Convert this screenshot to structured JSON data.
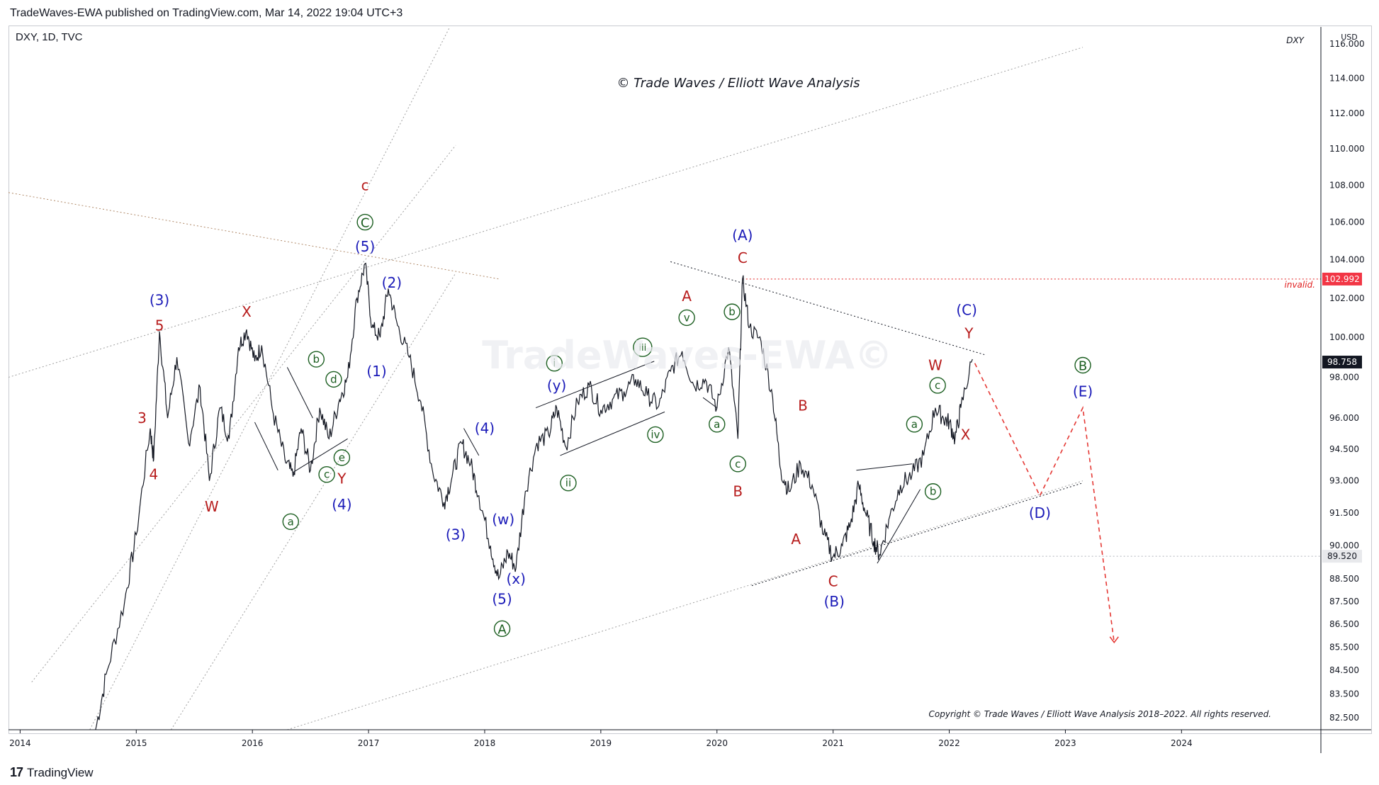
{
  "header": {
    "published_line": "TradeWaves-EWA published on TradingView.com, Mar 14, 2022 19:04 UTC+3",
    "symbol_line": "DXY, 1D, TVC"
  },
  "footer": {
    "brand": "TradingView"
  },
  "chart_data": {
    "type": "line",
    "title": "© Trade Waves / Elliott Wave Analysis",
    "watermark": "TradeWaves-EWA©",
    "symbol_tag": "DXY",
    "currency": "USD",
    "copyright": "Copyright © Trade Waves / Elliott Wave Analysis 2018–2022. All rights reserved.",
    "y_scale": "log",
    "ylim": [
      82.0,
      117.0
    ],
    "xlim": [
      2013.9,
      2025.2
    ],
    "x_ticks": [
      "2014",
      "2015",
      "2016",
      "2017",
      "2018",
      "2019",
      "2020",
      "2021",
      "2022",
      "2023",
      "2024"
    ],
    "y_ticks": [
      "82.500",
      "83.500",
      "84.500",
      "85.500",
      "86.500",
      "87.500",
      "88.500",
      "90.000",
      "91.500",
      "93.000",
      "94.500",
      "96.000",
      "98.000",
      "100.000",
      "102.000",
      "104.000",
      "106.000",
      "108.000",
      "110.000",
      "112.000",
      "114.000",
      "116.000"
    ],
    "price_badges": [
      {
        "label": "102.992",
        "value": 102.992,
        "bg": "#f23645",
        "fg": "#ffffff"
      },
      {
        "label": "98.758",
        "value": 98.758,
        "bg": "#131722",
        "fg": "#ffffff"
      },
      {
        "label": "89.520",
        "value": 89.52,
        "bg": "#e8e9ec",
        "fg": "#131722"
      }
    ],
    "invalidation": {
      "label": "invalid.",
      "value": 102.992,
      "color": "#e02020"
    },
    "series": [
      {
        "name": "DXY",
        "color": "#131722",
        "points": [
          [
            2014.65,
            82.0
          ],
          [
            2014.75,
            84.5
          ],
          [
            2014.9,
            87.5
          ],
          [
            2015.0,
            90.5
          ],
          [
            2015.12,
            95.5
          ],
          [
            2015.15,
            94.0
          ],
          [
            2015.2,
            100.3
          ],
          [
            2015.27,
            96.0
          ],
          [
            2015.35,
            99.0
          ],
          [
            2015.45,
            94.8
          ],
          [
            2015.55,
            97.5
          ],
          [
            2015.63,
            93.0
          ],
          [
            2015.72,
            96.5
          ],
          [
            2015.8,
            95.0
          ],
          [
            2015.88,
            99.5
          ],
          [
            2015.95,
            100.4
          ],
          [
            2016.02,
            98.8
          ],
          [
            2016.08,
            99.6
          ],
          [
            2016.18,
            96.2
          ],
          [
            2016.28,
            94.0
          ],
          [
            2016.35,
            93.2
          ],
          [
            2016.42,
            95.5
          ],
          [
            2016.5,
            93.5
          ],
          [
            2016.58,
            96.5
          ],
          [
            2016.66,
            95.0
          ],
          [
            2016.75,
            96.9
          ],
          [
            2016.82,
            98.0
          ],
          [
            2016.9,
            102.0
          ],
          [
            2016.97,
            103.8
          ],
          [
            2017.03,
            100.5
          ],
          [
            2017.1,
            100.0
          ],
          [
            2017.17,
            102.5
          ],
          [
            2017.25,
            100.6
          ],
          [
            2017.35,
            99.0
          ],
          [
            2017.45,
            96.8
          ],
          [
            2017.55,
            93.5
          ],
          [
            2017.65,
            92.0
          ],
          [
            2017.72,
            93.2
          ],
          [
            2017.8,
            94.8
          ],
          [
            2017.88,
            93.8
          ],
          [
            2017.95,
            92.3
          ],
          [
            2018.05,
            90.0
          ],
          [
            2018.12,
            88.5
          ],
          [
            2018.2,
            89.7
          ],
          [
            2018.27,
            89.0
          ],
          [
            2018.35,
            92.5
          ],
          [
            2018.45,
            94.8
          ],
          [
            2018.55,
            95.2
          ],
          [
            2018.62,
            96.5
          ],
          [
            2018.7,
            94.6
          ],
          [
            2018.8,
            96.8
          ],
          [
            2018.9,
            97.6
          ],
          [
            2019.0,
            96.4
          ],
          [
            2019.1,
            96.9
          ],
          [
            2019.2,
            97.3
          ],
          [
            2019.3,
            97.9
          ],
          [
            2019.4,
            97.1
          ],
          [
            2019.5,
            96.6
          ],
          [
            2019.6,
            98.3
          ],
          [
            2019.7,
            99.3
          ],
          [
            2019.8,
            97.6
          ],
          [
            2019.9,
            97.9
          ],
          [
            2020.0,
            96.5
          ],
          [
            2020.1,
            99.5
          ],
          [
            2020.18,
            95.0
          ],
          [
            2020.22,
            103.0
          ],
          [
            2020.28,
            100.5
          ],
          [
            2020.38,
            99.8
          ],
          [
            2020.48,
            97.0
          ],
          [
            2020.55,
            93.5
          ],
          [
            2020.62,
            92.5
          ],
          [
            2020.72,
            93.8
          ],
          [
            2020.82,
            92.8
          ],
          [
            2020.92,
            90.5
          ],
          [
            2021.0,
            89.5
          ],
          [
            2021.08,
            90.0
          ],
          [
            2021.15,
            91.0
          ],
          [
            2021.22,
            92.8
          ],
          [
            2021.28,
            91.5
          ],
          [
            2021.35,
            90.2
          ],
          [
            2021.4,
            89.6
          ],
          [
            2021.48,
            91.2
          ],
          [
            2021.58,
            92.8
          ],
          [
            2021.68,
            93.3
          ],
          [
            2021.78,
            94.2
          ],
          [
            2021.88,
            96.5
          ],
          [
            2021.95,
            96.0
          ],
          [
            2022.0,
            95.8
          ],
          [
            2022.05,
            95.0
          ],
          [
            2022.1,
            96.5
          ],
          [
            2022.2,
            98.9
          ]
        ]
      }
    ],
    "projections": [
      {
        "name": "",
        "color": "#e53935",
        "points": [
          [
            2022.22,
            98.7
          ],
          [
            2022.78,
            92.3
          ],
          [
            2023.15,
            96.5
          ],
          [
            2023.42,
            85.7
          ]
        ]
      }
    ],
    "trendlines": [
      {
        "color": "#131722",
        "style": "dotted",
        "points": [
          [
            2019.6,
            103.9
          ],
          [
            2022.32,
            99.1
          ]
        ]
      },
      {
        "color": "#131722",
        "style": "dotted",
        "points": [
          [
            2020.3,
            88.2
          ],
          [
            2023.15,
            92.9
          ]
        ]
      },
      {
        "color": "#9e9e9e",
        "style": "dotted",
        "points": [
          [
            2016.3,
            82.0
          ],
          [
            2023.15,
            93.0
          ]
        ]
      },
      {
        "color": "#9e9e9e",
        "style": "dotted",
        "points": [
          [
            2013.9,
            98.0
          ],
          [
            2023.15,
            115.8
          ]
        ]
      },
      {
        "color": "#b08968",
        "style": "dotted",
        "points": [
          [
            2013.9,
            107.6
          ],
          [
            2018.12,
            103.0
          ]
        ]
      },
      {
        "color": "#9e9e9e",
        "style": "dotted",
        "points": [
          [
            2014.6,
            82.0
          ],
          [
            2017.7,
            117.0
          ]
        ]
      },
      {
        "color": "#9e9e9e",
        "style": "dotted",
        "points": [
          [
            2014.1,
            84.0
          ],
          [
            2017.75,
            110.2
          ]
        ]
      },
      {
        "color": "#9e9e9e",
        "style": "dotted",
        "points": [
          [
            2015.3,
            82.0
          ],
          [
            2017.75,
            103.3
          ]
        ]
      },
      {
        "color": "#131722",
        "style": "solid",
        "points": [
          [
            2016.35,
            93.4
          ],
          [
            2016.82,
            95.0
          ]
        ]
      },
      {
        "color": "#131722",
        "style": "solid",
        "points": [
          [
            2018.44,
            96.5
          ],
          [
            2019.46,
            98.8
          ]
        ]
      },
      {
        "color": "#131722",
        "style": "solid",
        "points": [
          [
            2018.65,
            94.2
          ],
          [
            2019.55,
            96.3
          ]
        ]
      },
      {
        "color": "#131722",
        "style": "solid",
        "points": [
          [
            2021.2,
            93.5
          ],
          [
            2021.68,
            93.8
          ]
        ]
      },
      {
        "color": "#131722",
        "style": "solid",
        "points": [
          [
            2021.38,
            89.2
          ],
          [
            2021.75,
            92.6
          ]
        ]
      },
      {
        "color": "#131722",
        "style": "solid",
        "points": [
          [
            2016.02,
            95.8
          ],
          [
            2016.22,
            93.5
          ]
        ]
      },
      {
        "color": "#131722",
        "style": "solid",
        "points": [
          [
            2016.3,
            98.5
          ],
          [
            2016.52,
            96.0
          ]
        ]
      },
      {
        "color": "#131722",
        "style": "solid",
        "points": [
          [
            2017.82,
            95.5
          ],
          [
            2017.95,
            94.2
          ]
        ]
      },
      {
        "color": "#131722",
        "style": "solid",
        "points": [
          [
            2019.88,
            97.0
          ],
          [
            2020.0,
            96.5
          ]
        ]
      }
    ],
    "wave_labels": [
      {
        "text": "(3)",
        "x": 2015.2,
        "y": 101.9,
        "style": "blue"
      },
      {
        "text": "5",
        "x": 2015.2,
        "y": 100.6,
        "style": "red"
      },
      {
        "text": "3",
        "x": 2015.05,
        "y": 96.0,
        "style": "red"
      },
      {
        "text": "4",
        "x": 2015.15,
        "y": 93.3,
        "style": "red"
      },
      {
        "text": "W",
        "x": 2015.65,
        "y": 91.8,
        "style": "red"
      },
      {
        "text": "X",
        "x": 2015.95,
        "y": 101.3,
        "style": "red"
      },
      {
        "text": "b",
        "x": 2016.55,
        "y": 98.9,
        "style": "green-circle"
      },
      {
        "text": "d",
        "x": 2016.7,
        "y": 97.9,
        "style": "green-circle"
      },
      {
        "text": "e",
        "x": 2016.77,
        "y": 94.1,
        "style": "green-circle"
      },
      {
        "text": "c",
        "x": 2016.64,
        "y": 93.3,
        "style": "green-circle"
      },
      {
        "text": "a",
        "x": 2016.33,
        "y": 91.1,
        "style": "green-circle"
      },
      {
        "text": "Y",
        "x": 2016.77,
        "y": 93.1,
        "style": "red"
      },
      {
        "text": "(4)",
        "x": 2016.77,
        "y": 91.9,
        "style": "blue"
      },
      {
        "text": "c",
        "x": 2016.97,
        "y": 108.0,
        "style": "red"
      },
      {
        "text": "C",
        "x": 2016.97,
        "y": 106.0,
        "style": "green-circle"
      },
      {
        "text": "(5)",
        "x": 2016.97,
        "y": 104.7,
        "style": "blue"
      },
      {
        "text": "(2)",
        "x": 2017.2,
        "y": 102.8,
        "style": "blue"
      },
      {
        "text": "(1)",
        "x": 2017.07,
        "y": 98.3,
        "style": "blue"
      },
      {
        "text": "(4)",
        "x": 2018.0,
        "y": 95.5,
        "style": "blue"
      },
      {
        "text": "(3)",
        "x": 2017.75,
        "y": 90.5,
        "style": "blue"
      },
      {
        "text": "(w)",
        "x": 2018.16,
        "y": 91.2,
        "style": "blue"
      },
      {
        "text": "(x)",
        "x": 2018.27,
        "y": 88.5,
        "style": "blue"
      },
      {
        "text": "(5)",
        "x": 2018.15,
        "y": 87.6,
        "style": "blue"
      },
      {
        "text": "A",
        "x": 2018.15,
        "y": 86.3,
        "style": "green-circle"
      },
      {
        "text": "i",
        "x": 2018.6,
        "y": 98.7,
        "style": "green-circle"
      },
      {
        "text": "(y)",
        "x": 2018.62,
        "y": 97.6,
        "style": "blue"
      },
      {
        "text": "ii",
        "x": 2018.72,
        "y": 92.9,
        "style": "green-circle"
      },
      {
        "text": "iii",
        "x": 2019.36,
        "y": 99.5,
        "style": "green-circle"
      },
      {
        "text": "iv",
        "x": 2019.47,
        "y": 95.2,
        "style": "green-circle"
      },
      {
        "text": "A",
        "x": 2019.74,
        "y": 102.1,
        "style": "red"
      },
      {
        "text": "v",
        "x": 2019.74,
        "y": 101.0,
        "style": "green-circle"
      },
      {
        "text": "a",
        "x": 2020.0,
        "y": 95.7,
        "style": "green-circle"
      },
      {
        "text": "b",
        "x": 2020.13,
        "y": 101.3,
        "style": "green-circle"
      },
      {
        "text": "c",
        "x": 2020.18,
        "y": 93.8,
        "style": "green-circle"
      },
      {
        "text": "B",
        "x": 2020.18,
        "y": 92.5,
        "style": "red"
      },
      {
        "text": "(A)",
        "x": 2020.22,
        "y": 105.3,
        "style": "blue"
      },
      {
        "text": "C",
        "x": 2020.22,
        "y": 104.1,
        "style": "red"
      },
      {
        "text": "B",
        "x": 2020.74,
        "y": 96.6,
        "style": "red"
      },
      {
        "text": "A",
        "x": 2020.68,
        "y": 90.3,
        "style": "red"
      },
      {
        "text": "C",
        "x": 2021.0,
        "y": 88.4,
        "style": "red"
      },
      {
        "text": "(B)",
        "x": 2021.01,
        "y": 87.5,
        "style": "blue"
      },
      {
        "text": "a",
        "x": 2021.7,
        "y": 95.7,
        "style": "green-circle"
      },
      {
        "text": "b",
        "x": 2021.86,
        "y": 92.5,
        "style": "green-circle"
      },
      {
        "text": "W",
        "x": 2021.88,
        "y": 98.6,
        "style": "red"
      },
      {
        "text": "c",
        "x": 2021.9,
        "y": 97.6,
        "style": "green-circle"
      },
      {
        "text": "X",
        "x": 2022.14,
        "y": 95.2,
        "style": "red"
      },
      {
        "text": "(C)",
        "x": 2022.15,
        "y": 101.4,
        "style": "blue"
      },
      {
        "text": "Y",
        "x": 2022.17,
        "y": 100.2,
        "style": "red"
      },
      {
        "text": "B",
        "x": 2023.15,
        "y": 98.6,
        "style": "green-circle"
      },
      {
        "text": "(E)",
        "x": 2023.15,
        "y": 97.3,
        "style": "blue"
      },
      {
        "text": "(D)",
        "x": 2022.78,
        "y": 91.5,
        "style": "blue"
      }
    ],
    "colors": {
      "red": "#b71c1c",
      "blue": "#1a1ab8",
      "green": "#1b5e20",
      "projection": "#e53935"
    }
  }
}
